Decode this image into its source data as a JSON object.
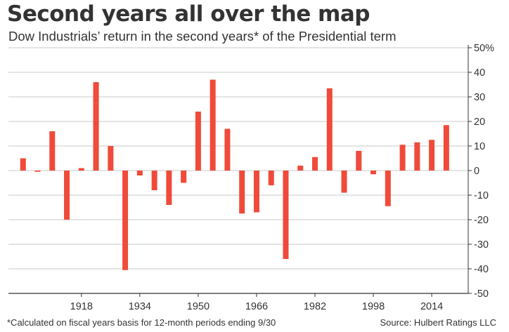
{
  "colors": {
    "bar": "#f04a3a",
    "grid": "#c8c8c8",
    "axis": "#333333",
    "text": "#333333"
  },
  "chart_data": {
    "type": "bar",
    "title": "Second years all over the map",
    "subtitle": "Dow Industrials’ return in the second years* of the Presidential term",
    "xlabel": "",
    "ylabel": "",
    "ylim": [
      -50,
      50
    ],
    "grid": true,
    "y_ticks": [
      50,
      40,
      30,
      20,
      10,
      0,
      -10,
      -20,
      -30,
      -40,
      -50
    ],
    "y_tick_labels": [
      "50%",
      "40",
      "30",
      "20",
      "10",
      "0",
      "-10",
      "-20",
      "-30",
      "-40",
      "-50"
    ],
    "x_ticks": [
      1918,
      1934,
      1950,
      1966,
      1982,
      1998,
      2014
    ],
    "x_tick_labels": [
      "1918",
      "1934",
      "1950",
      "1966",
      "1982",
      "1998",
      "2014"
    ],
    "x_range": [
      1898,
      2024
    ],
    "series": [
      {
        "name": "Dow Industrials return",
        "x": [
          1902,
          1906,
          1910,
          1914,
          1918,
          1922,
          1926,
          1930,
          1934,
          1938,
          1942,
          1946,
          1950,
          1954,
          1958,
          1962,
          1966,
          1970,
          1974,
          1978,
          1982,
          1986,
          1990,
          1994,
          1998,
          2002,
          2006,
          2010,
          2014,
          2018
        ],
        "values": [
          5,
          -0.5,
          16,
          -20,
          1,
          36,
          10,
          -40.5,
          -2,
          -8,
          -14,
          -5,
          24,
          37,
          17,
          -17.5,
          -17,
          -6,
          -36,
          2,
          5.5,
          33.5,
          -9,
          8,
          -1.5,
          -14.5,
          10.5,
          11.5,
          12.5,
          18.5
        ]
      }
    ],
    "footnote": "*Calculated on fiscal years basis for 12-month periods ending 9/30",
    "source": "Source: Hulbert Ratings LLC"
  }
}
